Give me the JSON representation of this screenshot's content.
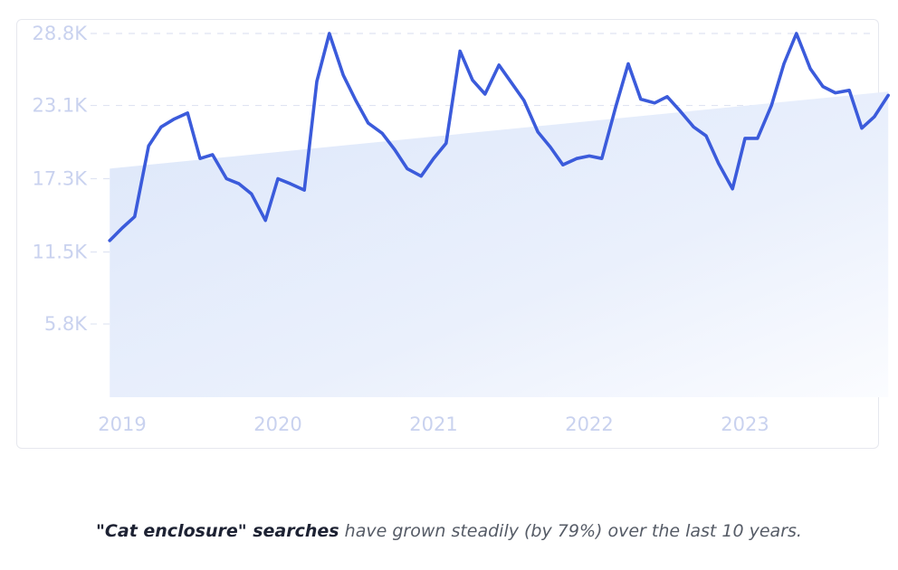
{
  "chart_data": {
    "type": "line",
    "title": "",
    "xlabel": "",
    "ylabel": "",
    "ylim": [
      0,
      28800
    ],
    "y_ticks": [
      {
        "value": 5800,
        "label": "5.8K"
      },
      {
        "value": 11500,
        "label": "11.5K"
      },
      {
        "value": 17300,
        "label": "17.3K"
      },
      {
        "value": 23100,
        "label": "23.1K"
      },
      {
        "value": 28800,
        "label": "28.8K"
      }
    ],
    "x_ticks": [
      {
        "value": 2019.0,
        "label": "2019"
      },
      {
        "value": 2020.0,
        "label": "2020"
      },
      {
        "value": 2021.0,
        "label": "2021"
      },
      {
        "value": 2022.0,
        "label": "2022"
      },
      {
        "value": 2023.0,
        "label": "2023"
      }
    ],
    "grid": true,
    "colors": {
      "line": "#3b5bdb",
      "trend_fill": "#e3ecfb",
      "grid": "#dfe4f2",
      "tick": "#c9d2ef"
    },
    "series": [
      {
        "x": [
          2018.92,
          2019.0,
          2019.08,
          2019.17,
          2019.25,
          2019.33,
          2019.42,
          2019.5,
          2019.58,
          2019.67,
          2019.75,
          2019.83,
          2019.92,
          2020.0,
          2020.08,
          2020.17,
          2020.25,
          2020.33,
          2020.42,
          2020.5,
          2020.58,
          2020.67,
          2020.75,
          2020.83,
          2020.92,
          2021.0,
          2021.08,
          2021.17,
          2021.25,
          2021.33,
          2021.42,
          2021.5,
          2021.58,
          2021.67,
          2021.75,
          2021.83,
          2021.92,
          2022.0,
          2022.08,
          2022.17,
          2022.25,
          2022.33,
          2022.42,
          2022.5,
          2022.58,
          2022.67,
          2022.75,
          2022.83,
          2022.92,
          2023.0,
          2023.08,
          2023.17,
          2023.25,
          2023.33,
          2023.42,
          2023.5,
          2023.58,
          2023.67,
          2023.75,
          2023.83,
          2023.92
        ],
        "values": [
          12400,
          13400,
          14300,
          19900,
          21400,
          22000,
          22500,
          18900,
          19200,
          17300,
          16900,
          16100,
          14000,
          17300,
          16900,
          16400,
          25000,
          28800,
          25500,
          23500,
          21700,
          20900,
          19600,
          18100,
          17500,
          18900,
          20100,
          27400,
          25100,
          24000,
          26300,
          24900,
          23500,
          21000,
          19800,
          18400,
          18900,
          19100,
          18900,
          23000,
          26400,
          23600,
          23300,
          23800,
          22700,
          21400,
          20700,
          18500,
          16500,
          20500,
          20500,
          23100,
          26400,
          28800,
          26000,
          24600,
          24100,
          24300,
          21300,
          22200,
          23900
        ]
      }
    ],
    "trend": {
      "x": [
        2018.92,
        2023.92
      ],
      "values": [
        18100,
        24200
      ]
    }
  },
  "caption": {
    "strong": "\"Cat enclosure\" searches",
    "rest": " have grown steadily (by 79%) over the last 10 years."
  }
}
